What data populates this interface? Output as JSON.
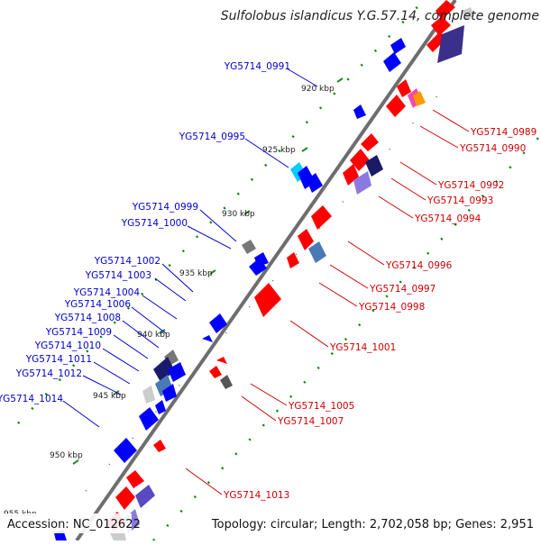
{
  "title": "Sulfolobus islandicus Y.G.57.14, complete genome",
  "footer": {
    "accession": "Accession: NC_012622",
    "summary": "Topology: circular; Length: 2,702,058 bp; Genes: 2,951"
  },
  "colors": {
    "forward": "#ff0000",
    "reverse": "#0000ff",
    "forward_label": "#cc0000",
    "reverse_label": "#0000cc",
    "backbone": "#888888",
    "ticks": "#008800",
    "gc_skew": "#4a3f9a"
  },
  "scale_labels": [
    "920 kbp",
    "925 kbp",
    "930 kbp",
    "935 kbp",
    "940 kbp",
    "945 kbp",
    "950 kbp",
    "955 kbp"
  ],
  "reverse_labels": [
    "YG5714_0991",
    "YG5714_0995",
    "YG5714_0999",
    "YG5714_1000",
    "YG5714_1002",
    "YG5714_1003",
    "YG5714_1004",
    "YG5714_1006",
    "YG5714_1008",
    "YG5714_1009",
    "YG5714_1010",
    "YG5714_1011",
    "YG5714_1012",
    "YG5714_1014"
  ],
  "forward_labels": [
    "YG5714_0989",
    "YG5714_0990",
    "YG5714_0992",
    "YG5714_0993",
    "YG5714_0994",
    "YG5714_0996",
    "YG5714_0997",
    "YG5714_0998",
    "YG5714_1001",
    "YG5714_1005",
    "YG5714_1007",
    "YG5714_1013"
  ]
}
